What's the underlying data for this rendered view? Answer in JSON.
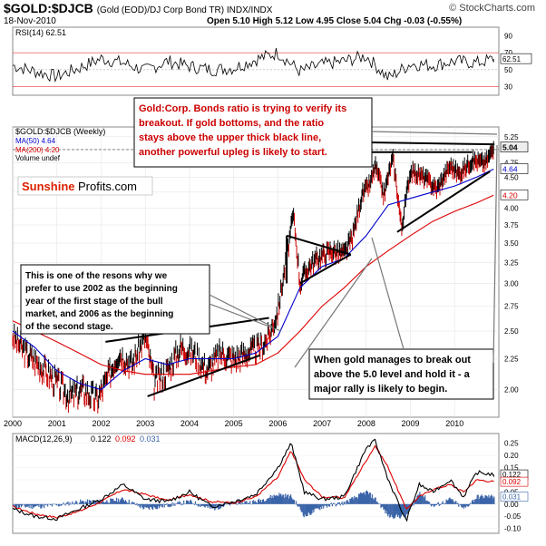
{
  "header": {
    "title": "$GOLD:$DJCB",
    "subtitle": "(Gold (EOD)/DJ Corp Bond TR)  INDX/INDX",
    "date": "18-Nov-2010",
    "ohlc": "Open 5.10  High 5.12  Low 4.95  Close 5.04  Chg -0.03 (-0.55%)",
    "brand": "© StockCharts.com"
  },
  "chart_data": [
    {
      "type": "line",
      "panel": "rsi",
      "legend": "RSI(14) 62.51",
      "last_value_label": "62.51",
      "ylim": [
        20,
        100
      ],
      "ticks": [
        30,
        50,
        70,
        90
      ],
      "guides": [
        30,
        50,
        70
      ],
      "x": [
        2000.0,
        2000.5,
        2001.0,
        2001.5,
        2002.0,
        2002.5,
        2003.0,
        2003.5,
        2004.0,
        2004.5,
        2005.0,
        2005.5,
        2006.0,
        2006.5,
        2007.0,
        2007.5,
        2008.0,
        2008.5,
        2009.0,
        2009.5,
        2010.0,
        2010.5,
        2010.88
      ],
      "values": [
        55,
        48,
        42,
        52,
        63,
        58,
        49,
        60,
        54,
        50,
        52,
        62,
        70,
        48,
        56,
        60,
        66,
        40,
        57,
        55,
        60,
        58,
        62.51
      ]
    },
    {
      "type": "line",
      "panel": "price",
      "legend": [
        "$GOLD:$DJCB (Weekly)",
        "MA(50) 4.64",
        "MA(200) 4.20",
        "Volume undef"
      ],
      "ylim": [
        1.8,
        5.45
      ],
      "ticks": [
        2.0,
        2.25,
        2.5,
        2.75,
        3.0,
        3.25,
        3.5,
        3.75,
        4.0,
        4.25,
        4.5,
        4.75,
        5.0,
        5.25
      ],
      "years": [
        "2000",
        "2001",
        "2002",
        "2003",
        "2004",
        "2005",
        "2006",
        "2007",
        "2008",
        "2009",
        "2010"
      ],
      "value_labels": {
        "close": "5.04",
        "ma50": "4.64",
        "ma200": "4.20"
      },
      "series": [
        {
          "name": "$GOLD:$DJCB (Weekly)",
          "color": "#000000",
          "x": [
            2000.0,
            2000.3,
            2000.6,
            2001.0,
            2001.3,
            2001.6,
            2001.9,
            2002.1,
            2002.4,
            2002.7,
            2003.0,
            2003.2,
            2003.5,
            2003.8,
            2004.1,
            2004.4,
            2004.7,
            2005.0,
            2005.3,
            2005.6,
            2005.8,
            2006.0,
            2006.2,
            2006.35,
            2006.5,
            2006.7,
            2006.9,
            2007.2,
            2007.5,
            2007.7,
            2007.9,
            2008.1,
            2008.2,
            2008.4,
            2008.6,
            2008.8,
            2009.0,
            2009.3,
            2009.6,
            2009.9,
            2010.1,
            2010.4,
            2010.7,
            2010.88
          ],
          "values": [
            2.45,
            2.3,
            2.2,
            2.05,
            1.95,
            2.0,
            1.92,
            2.05,
            2.3,
            2.2,
            2.45,
            2.05,
            2.15,
            2.35,
            2.3,
            2.15,
            2.3,
            2.25,
            2.3,
            2.35,
            2.45,
            2.7,
            3.3,
            3.9,
            3.0,
            3.2,
            3.3,
            3.4,
            3.35,
            3.6,
            4.2,
            4.4,
            4.7,
            4.2,
            4.85,
            3.7,
            4.6,
            4.5,
            4.3,
            4.7,
            4.55,
            4.8,
            4.75,
            5.04
          ]
        },
        {
          "name": "MA(50) 4.64",
          "color": "#0000cc",
          "x": [
            2000.0,
            2000.5,
            2001.0,
            2001.5,
            2002.0,
            2002.5,
            2003.0,
            2003.5,
            2004.0,
            2004.5,
            2005.0,
            2005.5,
            2006.0,
            2006.5,
            2007.0,
            2007.5,
            2008.0,
            2008.5,
            2009.0,
            2009.5,
            2010.0,
            2010.5,
            2010.88
          ],
          "values": [
            2.5,
            2.35,
            2.15,
            2.05,
            2.0,
            2.15,
            2.25,
            2.2,
            2.25,
            2.25,
            2.25,
            2.3,
            2.45,
            2.95,
            3.2,
            3.3,
            3.6,
            4.05,
            4.15,
            4.25,
            4.35,
            4.5,
            4.64
          ]
        },
        {
          "name": "MA(200) 4.20",
          "color": "#dd0000",
          "x": [
            2000.0,
            2000.5,
            2001.0,
            2001.5,
            2002.0,
            2002.5,
            2003.0,
            2003.5,
            2004.0,
            2004.5,
            2005.0,
            2005.5,
            2006.0,
            2006.5,
            2007.0,
            2007.5,
            2008.0,
            2008.5,
            2009.0,
            2009.5,
            2010.0,
            2010.5,
            2010.88
          ],
          "values": [
            2.6,
            2.5,
            2.4,
            2.3,
            2.2,
            2.15,
            2.12,
            2.12,
            2.12,
            2.15,
            2.18,
            2.2,
            2.3,
            2.5,
            2.75,
            2.95,
            3.2,
            3.4,
            3.6,
            3.8,
            3.95,
            4.08,
            4.2
          ]
        }
      ],
      "annotations": [
        {
          "name": "gold-breakout-note",
          "lines": [
            "Gold:Corp. Bonds ratio is trying to verify its",
            "breakout. If gold bottoms, and the ratio",
            "stays above the upper thick black line,",
            "another powerful upleg is likely to start."
          ],
          "color": "#cc0000"
        },
        {
          "name": "2002-2006-note",
          "lines": [
            "This is one of the resons why we",
            "prefer to use 2002 as the beginning",
            "year of the first stage of the bull",
            "market, and 2006 as the beginning",
            "of the second stage."
          ],
          "color": "#000000"
        },
        {
          "name": "5-level-note",
          "lines": [
            "When gold manages to break out",
            "above the 5.0 level and hold it - a",
            "major rally is likely to begin."
          ],
          "color": "#000000"
        }
      ],
      "logo": {
        "part1": "Sunshine",
        "part2": "Profits.com"
      }
    },
    {
      "type": "line",
      "panel": "macd",
      "legend_prefix": "MACD(12,26,9)",
      "legend_values": [
        "0.122",
        "0.092",
        "0.031"
      ],
      "value_labels": [
        "0.122",
        "0.092",
        "0.031"
      ],
      "ylim": [
        -0.12,
        0.29
      ],
      "ticks": [
        -0.1,
        -0.05,
        0.0,
        0.05,
        0.1,
        0.15,
        0.2,
        0.25
      ],
      "years": [
        "2000",
        "2001",
        "2002",
        "2003",
        "2004",
        "2005",
        "2006",
        "2007",
        "2008",
        "2009",
        "2010"
      ],
      "series": [
        {
          "name": "MACD",
          "color": "#000000",
          "x": [
            2000.0,
            2000.5,
            2001.0,
            2001.5,
            2002.0,
            2002.5,
            2003.0,
            2003.5,
            2004.0,
            2004.5,
            2005.0,
            2005.5,
            2006.0,
            2006.3,
            2006.6,
            2007.0,
            2007.5,
            2008.0,
            2008.2,
            2008.5,
            2008.9,
            2009.2,
            2009.5,
            2009.9,
            2010.2,
            2010.5,
            2010.88
          ],
          "values": [
            -0.02,
            -0.05,
            -0.06,
            -0.02,
            0.02,
            0.08,
            0.02,
            0.01,
            0.05,
            -0.01,
            0.01,
            0.04,
            0.15,
            0.25,
            0.05,
            0.02,
            0.03,
            0.23,
            0.26,
            0.1,
            -0.07,
            0.08,
            0.05,
            0.1,
            0.03,
            0.13,
            0.122
          ]
        },
        {
          "name": "Signal",
          "color": "#dd0000",
          "x": [
            2000.0,
            2000.5,
            2001.0,
            2001.5,
            2002.0,
            2002.5,
            2003.0,
            2003.5,
            2004.0,
            2004.5,
            2005.0,
            2005.5,
            2006.0,
            2006.3,
            2006.6,
            2007.0,
            2007.5,
            2008.0,
            2008.2,
            2008.5,
            2008.9,
            2009.2,
            2009.5,
            2009.9,
            2010.2,
            2010.5,
            2010.88
          ],
          "values": [
            -0.01,
            -0.04,
            -0.055,
            -0.03,
            0.01,
            0.06,
            0.04,
            0.015,
            0.04,
            0.01,
            0.005,
            0.03,
            0.11,
            0.22,
            0.1,
            0.03,
            0.025,
            0.18,
            0.24,
            0.15,
            -0.02,
            0.03,
            0.06,
            0.08,
            0.05,
            0.1,
            0.092
          ]
        },
        {
          "name": "Histogram",
          "color": "#3a64a8",
          "x": [
            2000.0,
            2000.5,
            2001.0,
            2001.5,
            2002.0,
            2002.5,
            2003.0,
            2003.5,
            2004.0,
            2004.5,
            2005.0,
            2005.5,
            2006.0,
            2006.3,
            2006.6,
            2007.0,
            2007.5,
            2008.0,
            2008.2,
            2008.5,
            2008.9,
            2009.2,
            2009.5,
            2009.9,
            2010.2,
            2010.5,
            2010.88
          ],
          "values": [
            -0.01,
            -0.01,
            -0.005,
            0.01,
            0.01,
            0.02,
            -0.02,
            -0.005,
            0.01,
            -0.02,
            0.005,
            0.01,
            0.04,
            0.03,
            -0.05,
            -0.01,
            0.005,
            0.05,
            0.02,
            -0.05,
            -0.05,
            0.05,
            -0.01,
            0.02,
            -0.02,
            0.03,
            0.031
          ]
        }
      ]
    }
  ]
}
